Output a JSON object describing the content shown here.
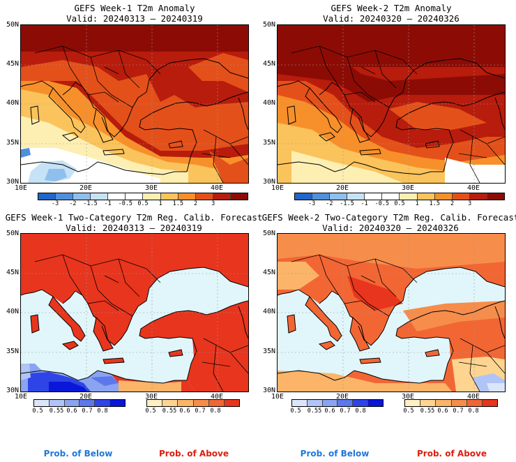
{
  "panels": [
    {
      "title": "GEFS Week-1 T2m Anomaly",
      "valid": "Valid: 20240313 – 20240319"
    },
    {
      "title": "GEFS Week-2 T2m Anomaly",
      "valid": "Valid: 20240320 – 20240326"
    },
    {
      "title": "GEFS Week-1 Two-Category T2m Reg. Calib. Forecast",
      "valid": "Valid: 20240313 – 20240319"
    },
    {
      "title": "GEFS Week-2 Two-Category T2m Reg. Calib. Forecast",
      "valid": "Valid: 20240320 – 20240326"
    }
  ],
  "lat_labels": [
    "50N",
    "45N",
    "40N",
    "35N",
    "30N"
  ],
  "lon_labels": [
    "10E",
    "20E",
    "30E",
    "40E"
  ],
  "anomaly_colorbar": {
    "ticks": [
      "-3",
      "-2",
      "-1.5",
      "-1",
      "-0.5",
      "0.5",
      "1",
      "1.5",
      "2",
      "3"
    ],
    "colors": [
      "#2166c8",
      "#4f8fdc",
      "#8fbfec",
      "#c6e2f7",
      "#ffffff",
      "#ffffff",
      "#fdefb2",
      "#fbc35c",
      "#f7902a",
      "#e4501a",
      "#b81c0c",
      "#8c0c05"
    ]
  },
  "prob_below_colorbar": {
    "ticks": [
      "0.5",
      "0.55",
      "0.6",
      "0.7",
      "0.8"
    ],
    "colors": [
      "#dce6fb",
      "#b0c4f6",
      "#8aa4f1",
      "#5d78ec",
      "#2e44e6",
      "#0a16d8"
    ]
  },
  "prob_above_colorbar": {
    "ticks": [
      "0.5",
      "0.55",
      "0.6",
      "0.7",
      "0.8"
    ],
    "colors": [
      "#fff0c4",
      "#fdd490",
      "#fbb468",
      "#f78d4a",
      "#f26634",
      "#e8351e"
    ]
  },
  "legend": {
    "below": "Prob. of Below",
    "above": "Prob. of Above",
    "below_color": "#1f78d8",
    "above_color": "#dd2010"
  },
  "land_color": "#f7f0e6",
  "sea_color": "#e0f6fa"
}
